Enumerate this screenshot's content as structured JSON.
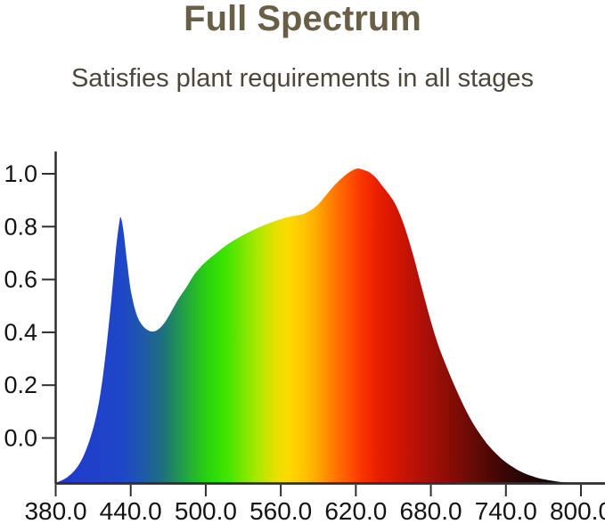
{
  "header": {
    "title": "Full Spectrum",
    "subtitle": "Satisfies plant requirements in all stages",
    "title_color": "#695e46",
    "subtitle_color": "#4c463c"
  },
  "chart_data": {
    "type": "area",
    "title": "Full Spectrum",
    "subtitle": "Satisfies plant requirements in all stages",
    "xlabel": "",
    "ylabel": "",
    "xlim": [
      380,
      800
    ],
    "ylim": [
      0,
      1.0
    ],
    "grid": false,
    "legend": false,
    "axis_color": "#2e2e2e",
    "tick_label_color": "#141414",
    "x_tick_values": [
      380,
      440,
      500,
      560,
      620,
      680,
      740,
      800
    ],
    "x_tick_labels": [
      "380.0",
      "440.0",
      "500.0",
      "560.0",
      "620.0",
      "680.0",
      "740.0",
      "800.0"
    ],
    "y_tick_values": [
      0.0,
      0.2,
      0.4,
      0.6,
      0.8,
      1.0
    ],
    "y_tick_labels": [
      "0.0",
      "0.2",
      "0.4",
      "0.6",
      "0.8",
      "1.0"
    ],
    "baseline_value": -0.172,
    "points": [
      [
        380,
        -0.17
      ],
      [
        386,
        -0.158
      ],
      [
        392,
        -0.138
      ],
      [
        398,
        -0.105
      ],
      [
        403,
        -0.06
      ],
      [
        408,
        0.005
      ],
      [
        412,
        0.075
      ],
      [
        416,
        0.175
      ],
      [
        420,
        0.32
      ],
      [
        424,
        0.5
      ],
      [
        427,
        0.655
      ],
      [
        429,
        0.75
      ],
      [
        431,
        0.82
      ],
      [
        432,
        0.835
      ],
      [
        434,
        0.79
      ],
      [
        437,
        0.67
      ],
      [
        440,
        0.56
      ],
      [
        444,
        0.478
      ],
      [
        448,
        0.435
      ],
      [
        453,
        0.41
      ],
      [
        458,
        0.403
      ],
      [
        463,
        0.415
      ],
      [
        468,
        0.443
      ],
      [
        473,
        0.483
      ],
      [
        478,
        0.525
      ],
      [
        484,
        0.567
      ],
      [
        490,
        0.613
      ],
      [
        496,
        0.648
      ],
      [
        502,
        0.675
      ],
      [
        509,
        0.702
      ],
      [
        516,
        0.728
      ],
      [
        524,
        0.752
      ],
      [
        532,
        0.773
      ],
      [
        540,
        0.792
      ],
      [
        548,
        0.808
      ],
      [
        556,
        0.822
      ],
      [
        564,
        0.834
      ],
      [
        572,
        0.842
      ],
      [
        578,
        0.848
      ],
      [
        584,
        0.862
      ],
      [
        590,
        0.885
      ],
      [
        596,
        0.918
      ],
      [
        602,
        0.952
      ],
      [
        608,
        0.98
      ],
      [
        613,
        1.0
      ],
      [
        618,
        1.015
      ],
      [
        622,
        1.02
      ],
      [
        626,
        1.015
      ],
      [
        631,
        1.005
      ],
      [
        636,
        0.985
      ],
      [
        641,
        0.955
      ],
      [
        646,
        0.925
      ],
      [
        651,
        0.89
      ],
      [
        656,
        0.838
      ],
      [
        661,
        0.77
      ],
      [
        666,
        0.69
      ],
      [
        671,
        0.6
      ],
      [
        676,
        0.51
      ],
      [
        681,
        0.425
      ],
      [
        686,
        0.35
      ],
      [
        691,
        0.288
      ],
      [
        696,
        0.23
      ],
      [
        702,
        0.165
      ],
      [
        708,
        0.105
      ],
      [
        714,
        0.053
      ],
      [
        720,
        0.01
      ],
      [
        726,
        -0.028
      ],
      [
        733,
        -0.063
      ],
      [
        740,
        -0.092
      ],
      [
        748,
        -0.117
      ],
      [
        756,
        -0.136
      ],
      [
        764,
        -0.149
      ],
      [
        772,
        -0.158
      ],
      [
        781,
        -0.165
      ],
      [
        790,
        -0.169
      ],
      [
        800,
        -0.172
      ]
    ],
    "gradient_stops": [
      {
        "wavelength": 380,
        "color": "#2138cd"
      },
      {
        "wavelength": 432,
        "color": "#1e46c8"
      },
      {
        "wavelength": 450,
        "color": "#1f59a8"
      },
      {
        "wavelength": 465,
        "color": "#1e6f80"
      },
      {
        "wavelength": 478,
        "color": "#219255"
      },
      {
        "wavelength": 490,
        "color": "#26b42e"
      },
      {
        "wavelength": 500,
        "color": "#2bcf12"
      },
      {
        "wavelength": 510,
        "color": "#33e003"
      },
      {
        "wavelength": 522,
        "color": "#55e600"
      },
      {
        "wavelength": 535,
        "color": "#8fe800"
      },
      {
        "wavelength": 547,
        "color": "#c3e600"
      },
      {
        "wavelength": 557,
        "color": "#eadf00"
      },
      {
        "wavelength": 567,
        "color": "#ffd800"
      },
      {
        "wavelength": 580,
        "color": "#ffc100"
      },
      {
        "wavelength": 592,
        "color": "#ff9e00"
      },
      {
        "wavelength": 604,
        "color": "#ff7400"
      },
      {
        "wavelength": 615,
        "color": "#ff5200"
      },
      {
        "wavelength": 625,
        "color": "#f93400"
      },
      {
        "wavelength": 638,
        "color": "#e81e00"
      },
      {
        "wavelength": 652,
        "color": "#d41500"
      },
      {
        "wavelength": 668,
        "color": "#b81108"
      },
      {
        "wavelength": 684,
        "color": "#9c0f07"
      },
      {
        "wavelength": 700,
        "color": "#7f0c06"
      },
      {
        "wavelength": 718,
        "color": "#5e0a05"
      },
      {
        "wavelength": 737,
        "color": "#3c0704"
      },
      {
        "wavelength": 757,
        "color": "#220503"
      },
      {
        "wavelength": 778,
        "color": "#100202"
      },
      {
        "wavelength": 800,
        "color": "#060101"
      }
    ]
  }
}
